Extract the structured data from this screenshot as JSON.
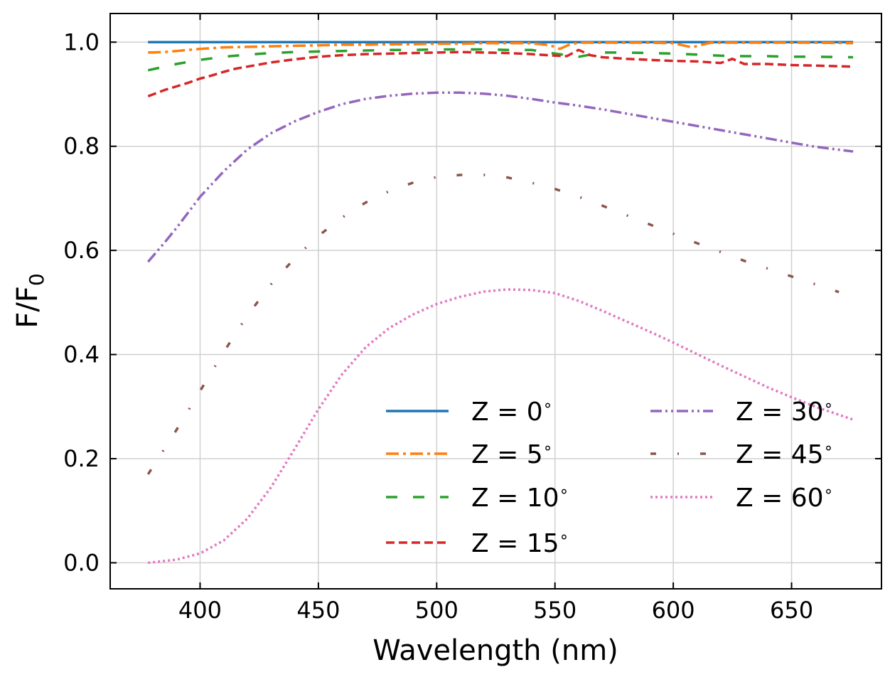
{
  "chart_data": {
    "type": "line",
    "title": "",
    "xlabel": "Wavelength (nm)",
    "ylabel": "F/F",
    "ylabel_subscript": "0",
    "xlim": [
      362,
      688
    ],
    "ylim": [
      -0.05,
      1.055
    ],
    "xticks": [
      400,
      450,
      500,
      550,
      600,
      650
    ],
    "yticks": [
      0.0,
      0.2,
      0.4,
      0.6,
      0.8,
      1.0
    ],
    "xtick_labels": [
      "400",
      "450",
      "500",
      "550",
      "600",
      "650"
    ],
    "ytick_labels": [
      "0.0",
      "0.2",
      "0.4",
      "0.6",
      "0.8",
      "1.0"
    ],
    "grid": true,
    "legend_position": "lower-right",
    "legend_columns": 2,
    "degree_symbol": "∘",
    "series": [
      {
        "name": "Z = 0",
        "color": "#1f77b4",
        "dash": "solid",
        "x": [
          378,
          400,
          450,
          500,
          550,
          600,
          650,
          676
        ],
        "y": [
          1.0,
          1.0,
          1.0,
          1.0,
          1.0,
          1.0,
          1.0,
          1.0
        ]
      },
      {
        "name": "Z = 5",
        "color": "#ff7f0e",
        "dash": "dashdot",
        "x": [
          378,
          385,
          390,
          400,
          410,
          420,
          430,
          440,
          450,
          460,
          470,
          480,
          490,
          500,
          510,
          520,
          530,
          540,
          548,
          552,
          556,
          560,
          570,
          580,
          590,
          600,
          605,
          608,
          612,
          616,
          620,
          630,
          640,
          650,
          660,
          676
        ],
        "y": [
          0.98,
          0.981,
          0.983,
          0.987,
          0.99,
          0.991,
          0.992,
          0.993,
          0.994,
          0.995,
          0.995,
          0.996,
          0.996,
          0.997,
          0.997,
          0.998,
          0.998,
          0.998,
          0.994,
          0.987,
          0.995,
          0.999,
          0.999,
          0.999,
          0.999,
          0.998,
          0.993,
          0.99,
          0.995,
          0.999,
          0.999,
          0.999,
          0.999,
          0.999,
          0.999,
          0.998
        ]
      },
      {
        "name": "Z = 10",
        "color": "#2ca02c",
        "dash": "longdash",
        "x": [
          378,
          390,
          400,
          410,
          420,
          430,
          440,
          450,
          460,
          470,
          480,
          490,
          500,
          510,
          520,
          530,
          540,
          550,
          560,
          570,
          580,
          590,
          600,
          610,
          620,
          630,
          640,
          650,
          660,
          676
        ],
        "y": [
          0.946,
          0.958,
          0.966,
          0.972,
          0.976,
          0.979,
          0.981,
          0.982,
          0.983,
          0.984,
          0.985,
          0.985,
          0.986,
          0.986,
          0.986,
          0.985,
          0.985,
          0.978,
          0.972,
          0.98,
          0.98,
          0.979,
          0.978,
          0.976,
          0.974,
          0.973,
          0.973,
          0.972,
          0.972,
          0.971
        ]
      },
      {
        "name": "Z = 15",
        "color": "#d62728",
        "dash": "dashed",
        "x": [
          378,
          385,
          390,
          395,
          400,
          405,
          410,
          415,
          420,
          425,
          430,
          440,
          450,
          460,
          470,
          480,
          490,
          500,
          510,
          520,
          530,
          540,
          550,
          555,
          560,
          565,
          570,
          580,
          590,
          600,
          610,
          620,
          625,
          630,
          640,
          650,
          660,
          676
        ],
        "y": [
          0.896,
          0.908,
          0.915,
          0.922,
          0.93,
          0.936,
          0.943,
          0.949,
          0.953,
          0.957,
          0.961,
          0.967,
          0.972,
          0.975,
          0.977,
          0.978,
          0.979,
          0.98,
          0.981,
          0.98,
          0.979,
          0.977,
          0.974,
          0.973,
          0.985,
          0.975,
          0.971,
          0.968,
          0.966,
          0.964,
          0.963,
          0.96,
          0.968,
          0.958,
          0.958,
          0.956,
          0.955,
          0.953
        ]
      },
      {
        "name": "Z = 30",
        "color": "#9467bd",
        "dash": "dashdotdot",
        "x": [
          378,
          385,
          390,
          400,
          410,
          420,
          430,
          440,
          450,
          460,
          470,
          480,
          490,
          500,
          510,
          520,
          530,
          540,
          550,
          560,
          570,
          580,
          590,
          600,
          610,
          620,
          630,
          640,
          650,
          660,
          676
        ],
        "y": [
          0.578,
          0.615,
          0.643,
          0.703,
          0.752,
          0.794,
          0.825,
          0.848,
          0.866,
          0.881,
          0.891,
          0.897,
          0.901,
          0.903,
          0.903,
          0.901,
          0.897,
          0.891,
          0.884,
          0.878,
          0.871,
          0.863,
          0.855,
          0.847,
          0.839,
          0.831,
          0.823,
          0.815,
          0.807,
          0.799,
          0.79
        ]
      },
      {
        "name": "Z = 45",
        "color": "#8c564b",
        "dash": "sparse",
        "x": [
          378,
          390,
          400,
          410,
          420,
          430,
          440,
          450,
          460,
          470,
          480,
          490,
          500,
          510,
          520,
          530,
          540,
          550,
          560,
          570,
          580,
          590,
          600,
          610,
          620,
          630,
          640,
          650,
          660,
          670
        ],
        "y": [
          0.17,
          0.255,
          0.33,
          0.405,
          0.475,
          0.535,
          0.585,
          0.628,
          0.663,
          0.692,
          0.714,
          0.73,
          0.741,
          0.745,
          0.745,
          0.74,
          0.73,
          0.718,
          0.703,
          0.686,
          0.668,
          0.65,
          0.632,
          0.614,
          0.597,
          0.58,
          0.565,
          0.55,
          0.535,
          0.52
        ]
      },
      {
        "name": "Z = 60",
        "color": "#e377c2",
        "dash": "dotted",
        "x": [
          378,
          390,
          400,
          410,
          420,
          430,
          440,
          450,
          460,
          470,
          480,
          490,
          500,
          510,
          520,
          530,
          540,
          550,
          560,
          570,
          580,
          590,
          600,
          610,
          620,
          630,
          640,
          650,
          660,
          676
        ],
        "y": [
          0.0,
          0.006,
          0.018,
          0.043,
          0.085,
          0.145,
          0.219,
          0.295,
          0.362,
          0.414,
          0.451,
          0.477,
          0.497,
          0.511,
          0.521,
          0.525,
          0.524,
          0.518,
          0.503,
          0.484,
          0.464,
          0.444,
          0.423,
          0.401,
          0.379,
          0.358,
          0.337,
          0.318,
          0.3,
          0.275
        ]
      }
    ]
  }
}
